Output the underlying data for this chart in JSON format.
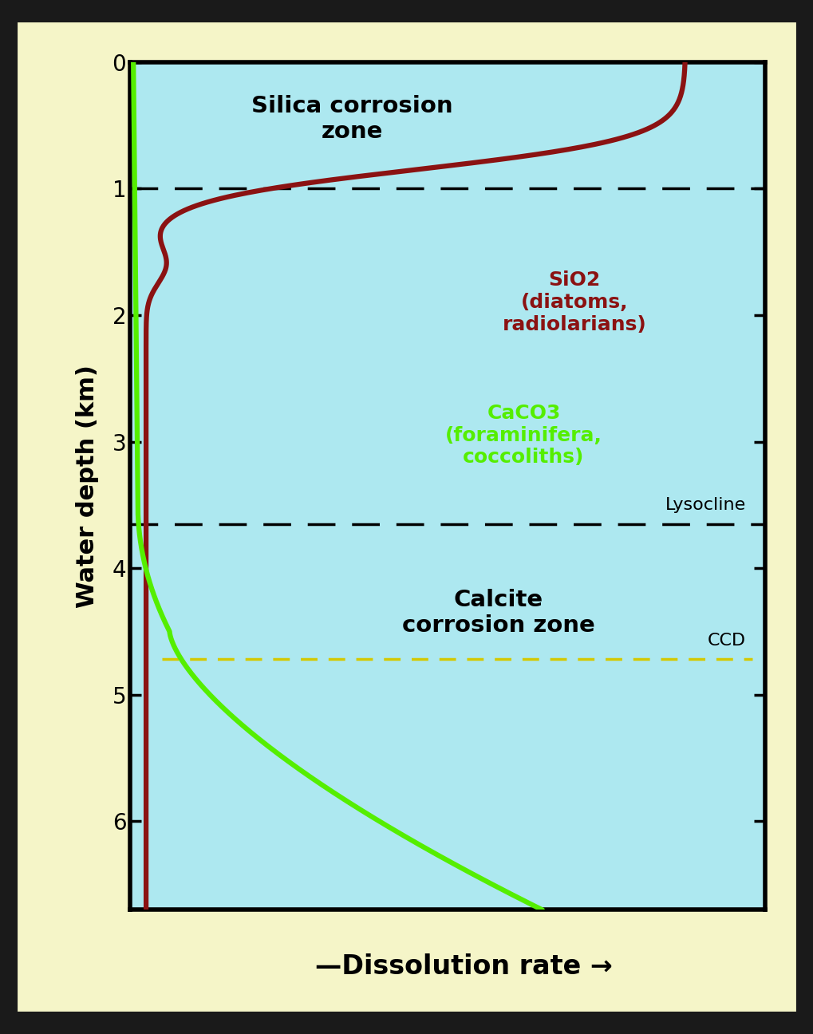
{
  "outer_bg": "#F5F5C8",
  "dark_border": "#1a1a1a",
  "plot_bg_color": "#ADE8F0",
  "ylabel": "Water depth (km)",
  "xlabel": "—Dissolution rate →",
  "ylim": [
    0,
    6.7
  ],
  "xlim": [
    0,
    10
  ],
  "yticks": [
    0,
    1,
    2,
    3,
    4,
    5,
    6
  ],
  "dashed_line_1": 1.0,
  "dashed_line_2": 3.65,
  "ccd_line_depth": 4.72,
  "ccd_color": "#D4C800",
  "silica_color": "#8B1212",
  "caco3_color": "#55EE00",
  "zone1_label": "Silica corrosion\nzone",
  "zone2_label": "Calcite\ncorrosion zone",
  "sio2_label": "SiO2\n(diatoms,\nradiolarians)",
  "caco3_label": "CaCO3\n(foraminifera,\ncoccoliths)",
  "lysocline_label": "Lysocline",
  "ccd_label": "CCD",
  "arrow_line": "—Dissolution rate →"
}
